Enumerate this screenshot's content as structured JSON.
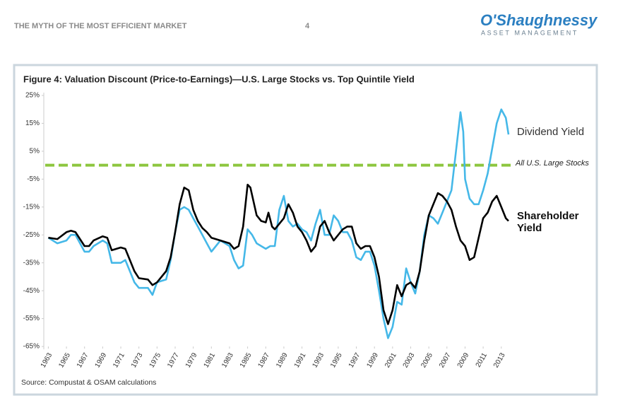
{
  "header": {
    "title": "THE MYTH OF THE MOST EFFICIENT MARKET",
    "page": "4",
    "logo": "O'Shaughnessy",
    "logo_sub": "ASSET MANAGEMENT"
  },
  "chart_data": {
    "type": "line",
    "title": "Figure 4: Valuation Discount (Price-to-Earnings)—U.S. Large Stocks vs. Top Quintile Yield",
    "source": "Source: Compustat & OSAM calculations",
    "xlim": [
      1962.5,
      2014.5
    ],
    "xticks": [
      1963,
      1965,
      1967,
      1969,
      1971,
      1973,
      1975,
      1977,
      1979,
      1981,
      1983,
      1985,
      1987,
      1989,
      1991,
      1993,
      1995,
      1997,
      1999,
      2001,
      2003,
      2005,
      2007,
      2009,
      2011,
      2013
    ],
    "ylim": [
      -65,
      25
    ],
    "yticks": [
      {
        "value": -65,
        "label": "-65%"
      },
      {
        "value": -55,
        "label": "-55%"
      },
      {
        "value": -45,
        "label": "-45%"
      },
      {
        "value": -35,
        "label": "-35%"
      },
      {
        "value": -25,
        "label": "-25%"
      },
      {
        "value": -15,
        "label": "-15%"
      },
      {
        "value": -5,
        "label": "-5%"
      },
      {
        "value": 5,
        "label": "5%"
      },
      {
        "value": 15,
        "label": "15%"
      },
      {
        "value": 25,
        "label": "25%"
      }
    ],
    "reference_line": {
      "value": 0,
      "label": "All U.S. Large Stocks",
      "color": "#8dc63f"
    },
    "series": [
      {
        "name": "Dividend Yield",
        "color": "#45b8e8",
        "x": [
          1963,
          1964,
          1965,
          1965.5,
          1966,
          1967,
          1967.5,
          1968,
          1969,
          1969.5,
          1970,
          1971,
          1971.5,
          1972,
          1972.5,
          1973,
          1974,
          1974.5,
          1975,
          1976,
          1976.5,
          1977,
          1977.5,
          1978,
          1978.5,
          1979,
          1979.5,
          1980,
          1980.5,
          1981,
          1981.5,
          1982,
          1983,
          1983.5,
          1984,
          1984.5,
          1985,
          1985.5,
          1986,
          1986.5,
          1987,
          1987.5,
          1988,
          1988.5,
          1989,
          1989.5,
          1990,
          1990.5,
          1991,
          1991.5,
          1992,
          1992.5,
          1993,
          1993.5,
          1994,
          1994.5,
          1995,
          1995.5,
          1996,
          1996.5,
          1997,
          1997.5,
          1998,
          1998.5,
          1999,
          1999.5,
          2000,
          2000.5,
          2001,
          2001.5,
          2002,
          2002.5,
          2003,
          2003.5,
          2004,
          2004.5,
          2005,
          2005.5,
          2006,
          2006.5,
          2007,
          2007.5,
          2008,
          2008.5,
          2008.8,
          2009,
          2009.5,
          2010,
          2010.5,
          2011,
          2011.5,
          2012,
          2012.5,
          2013,
          2013.5,
          2013.8
        ],
        "values": [
          -26,
          -28,
          -27,
          -25,
          -25,
          -31,
          -31,
          -29,
          -27,
          -28,
          -35,
          -35,
          -34,
          -38,
          -42,
          -44,
          -44,
          -46.5,
          -42,
          -41,
          -34,
          -24,
          -16,
          -15,
          -16,
          -19,
          -22,
          -25,
          -28,
          -31,
          -29,
          -27,
          -29,
          -34,
          -37,
          -36,
          -23,
          -25,
          -28,
          -29,
          -30,
          -29,
          -29,
          -16,
          -11,
          -20,
          -22,
          -21,
          -23,
          -24,
          -27,
          -21,
          -16,
          -25,
          -25,
          -18,
          -20,
          -24,
          -24,
          -27,
          -33,
          -34,
          -31,
          -31,
          -36,
          -45,
          -55,
          -62,
          -58,
          -49,
          -50,
          -37,
          -42,
          -46,
          -38,
          -25,
          -18,
          -19,
          -21,
          -17,
          -13,
          -9,
          5,
          19,
          12,
          -5,
          -12,
          -14,
          -14,
          -9,
          -3,
          6,
          15,
          20,
          17,
          11
        ]
      },
      {
        "name": "Shareholder Yield",
        "color": "#000000",
        "x": [
          1963,
          1964,
          1965,
          1965.5,
          1966,
          1967,
          1967.5,
          1968,
          1969,
          1969.5,
          1970,
          1971,
          1971.5,
          1972,
          1972.5,
          1973,
          1974,
          1974.5,
          1975,
          1976,
          1976.5,
          1977,
          1977.5,
          1978,
          1978.5,
          1979,
          1979.5,
          1980,
          1980.5,
          1981,
          1982,
          1982.5,
          1983,
          1983.5,
          1984,
          1984.5,
          1985,
          1985.3,
          1986,
          1986.5,
          1987,
          1987.3,
          1987.7,
          1988,
          1988.5,
          1989,
          1989.5,
          1990,
          1990.5,
          1991,
          1991.5,
          1992,
          1992.5,
          1993,
          1993.5,
          1994,
          1994.5,
          1995,
          1995.5,
          1996,
          1996.5,
          1997,
          1997.5,
          1998,
          1998.5,
          1999,
          1999.5,
          2000,
          2000.5,
          2001,
          2001.5,
          2002,
          2002.5,
          2003,
          2003.5,
          2004,
          2004.5,
          2005,
          2005.5,
          2006,
          2006.5,
          2007,
          2007.5,
          2008,
          2008.5,
          2009,
          2009.5,
          2010,
          2010.5,
          2011,
          2011.5,
          2012,
          2012.5,
          2013,
          2013.5,
          2013.8
        ],
        "values": [
          -26,
          -26.5,
          -24,
          -23.5,
          -24,
          -29,
          -29,
          -27,
          -25.5,
          -26,
          -30.5,
          -29.5,
          -30,
          -34,
          -38,
          -40.5,
          -41,
          -43,
          -42,
          -38,
          -33,
          -24,
          -14,
          -8,
          -9,
          -16,
          -20,
          -22.5,
          -24,
          -26,
          -27,
          -27.5,
          -28,
          -30,
          -29,
          -22,
          -7,
          -8,
          -18,
          -20,
          -20.5,
          -17,
          -22,
          -23,
          -21,
          -19,
          -14,
          -17,
          -22,
          -24,
          -27,
          -31,
          -29,
          -22,
          -20,
          -24,
          -27,
          -25,
          -23,
          -22,
          -22,
          -28,
          -30,
          -29,
          -29,
          -33,
          -40,
          -52,
          -57,
          -52,
          -43,
          -47,
          -43,
          -42,
          -44,
          -38,
          -27,
          -18,
          -14,
          -10,
          -11,
          -13,
          -16,
          -22,
          -27,
          -29,
          -34,
          -33,
          -26,
          -19,
          -17,
          -13,
          -11,
          -15,
          -19,
          -20
        ]
      }
    ]
  }
}
